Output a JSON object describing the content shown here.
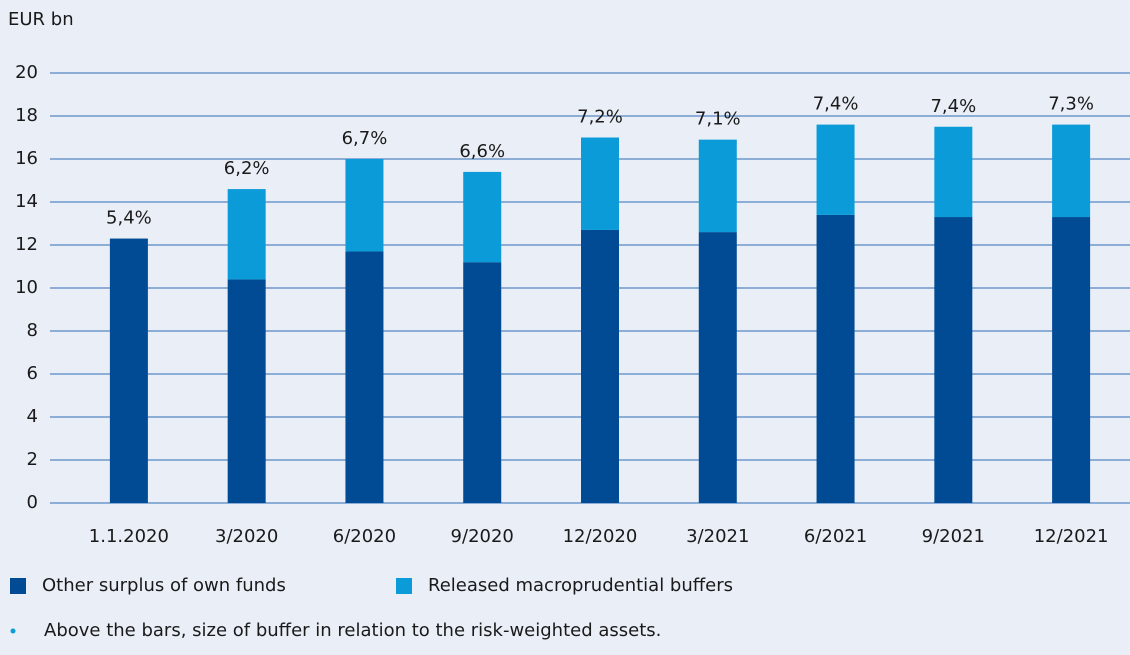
{
  "chart_data": {
    "type": "stacked_bar",
    "y_axis_label": "EUR bn",
    "categories": [
      "1.1.2020",
      "3/2020",
      "6/2020",
      "9/2020",
      "12/2020",
      "3/2021",
      "6/2021",
      "9/2021",
      "12/2021"
    ],
    "series": [
      {
        "name": "Other surplus of own funds",
        "color": "#004b93",
        "values": [
          12.3,
          10.4,
          11.7,
          11.2,
          12.7,
          12.6,
          13.4,
          13.3,
          13.3
        ]
      },
      {
        "name": "Released macroprudential buffers",
        "color": "#0a9bd8",
        "values": [
          0,
          4.2,
          4.3,
          4.2,
          4.3,
          4.3,
          4.2,
          4.2,
          4.3
        ]
      }
    ],
    "bar_labels": [
      "5,4%",
      "6,2%",
      "6,7%",
      "6,6%",
      "7,2%",
      "7,1%",
      "7,4%",
      "7,4%",
      "7,3%"
    ],
    "ylim": [
      0,
      20
    ],
    "yticks": [
      0,
      2,
      4,
      6,
      8,
      10,
      12,
      14,
      16,
      18,
      20
    ],
    "grid": true,
    "footnote": "Above the bars, size of buffer in relation to the risk-weighted assets."
  }
}
